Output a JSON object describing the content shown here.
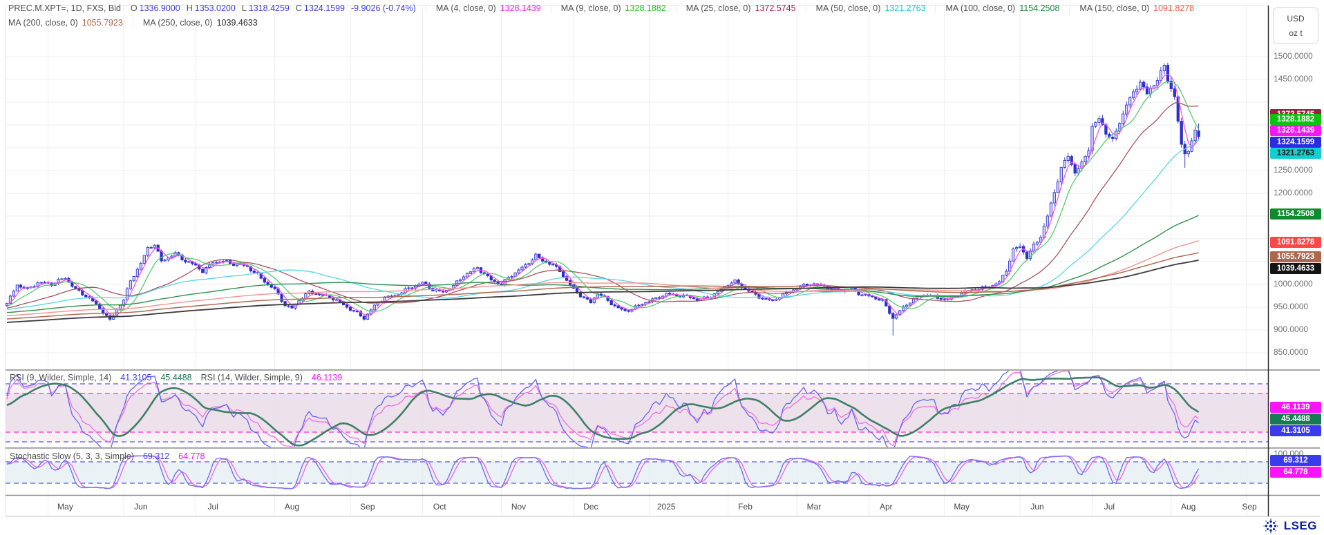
{
  "header": {
    "instrument": "PREC.M.XPT=, 1D, FXS, Bid",
    "ohlc": {
      "o_label": "O",
      "open": "1336.9000",
      "h_label": "H",
      "high": "1353.0200",
      "l_label": "L",
      "low": "1318.4259",
      "c_label": "C",
      "close": "1324.1599",
      "change": "-9.9026 (-0.74%)"
    },
    "ma_row1": [
      {
        "label": "MA (4, close, 0)",
        "value": "1328.1439",
        "color": "#ef1fe0"
      },
      {
        "label": "MA (9, close, 0)",
        "value": "1328.1882",
        "color": "#17c117"
      },
      {
        "label": "MA (25, close, 0)",
        "value": "1372.5745",
        "color": "#a8204a"
      },
      {
        "label": "MA (50, close, 0)",
        "value": "1321.2763",
        "color": "#17c3c3"
      },
      {
        "label": "MA (100, close, 0)",
        "value": "1154.2508",
        "color": "#138a38"
      },
      {
        "label": "MA (150, close, 0)",
        "value": "1091.8278",
        "color": "#f4564e"
      }
    ],
    "ma_row2": [
      {
        "label": "MA (200, close, 0)",
        "value": "1055.7923",
        "color": "#b2684c"
      },
      {
        "label": "MA (250, close, 0)",
        "value": "1039.4633",
        "color": "#2b2b2b"
      }
    ]
  },
  "axis": {
    "unit_top": "USD",
    "unit_bottom": "oz t",
    "price_ticks": [
      {
        "label": "1500.0000",
        "value": 1500
      },
      {
        "label": "1450.0000",
        "value": 1450
      },
      {
        "label": "1250.0000",
        "value": 1250
      },
      {
        "label": "1200.0000",
        "value": 1200
      },
      {
        "label": "1000.0000",
        "value": 1000
      },
      {
        "label": "950.0000",
        "value": 950
      },
      {
        "label": "900.0000",
        "value": 900
      },
      {
        "label": "850.0000",
        "value": 850
      }
    ],
    "stoch_tick": "100.000",
    "x_labels": [
      "May",
      "Jun",
      "Jul",
      "Aug",
      "Sep",
      "Oct",
      "Nov",
      "Dec",
      "2025",
      "Feb",
      "Mar",
      "Apr",
      "May",
      "Jun",
      "Jul",
      "Aug",
      "Sep"
    ]
  },
  "badges": {
    "price": [
      {
        "label": "1372.5745",
        "value": 1372.5745,
        "bg": "#a01f3e",
        "fg": "#ffffff"
      },
      {
        "label": "1328.1882",
        "value": 1328.1882,
        "bg": "#0ec20e",
        "fg": "#ffffff"
      },
      {
        "label": "1328.1439",
        "value": 1328.1439,
        "bg": "#f515f5",
        "fg": "#ffffff"
      },
      {
        "label": "1324.1599",
        "value": 1324.1599,
        "bg": "#2b2be0",
        "fg": "#ffffff"
      },
      {
        "label": "1321.2763",
        "value": 1321.2763,
        "bg": "#12cfcf",
        "fg": "#101010"
      },
      {
        "label": "1154.2508",
        "value": 1154.2508,
        "bg": "#0f8a2e",
        "fg": "#ffffff"
      },
      {
        "label": "1091.8278",
        "value": 1091.8278,
        "bg": "#fb4747",
        "fg": "#ffffff"
      },
      {
        "label": "1055.7923",
        "value": 1055.7923,
        "bg": "#ab684f",
        "fg": "#ffffff"
      },
      {
        "label": "1039.4633",
        "value": 1039.4633,
        "bg": "#141414",
        "fg": "#ffffff"
      }
    ],
    "rsi": [
      {
        "label": "46.1139",
        "value": 46.1139,
        "bg": "#f515f5",
        "fg": "#ffffff"
      },
      {
        "label": "45.4488",
        "value": 45.4488,
        "bg": "#187a54",
        "fg": "#ffffff"
      },
      {
        "label": "41.3105",
        "value": 41.3105,
        "bg": "#3b3bee",
        "fg": "#ffffff"
      }
    ],
    "stoch": [
      {
        "label": "69.312",
        "value": 69.312,
        "bg": "#3b3bee",
        "fg": "#ffffff"
      },
      {
        "label": "64.778",
        "value": 64.778,
        "bg": "#f515f5",
        "fg": "#ffffff"
      }
    ]
  },
  "rsi_legend": [
    {
      "text": "RSI (9, Wilder, Simple, 14)",
      "color": "#4e4e4e"
    },
    {
      "text": "41.3105",
      "color": "#3b3bee"
    },
    {
      "text": "45.4488",
      "color": "#187a54"
    },
    {
      "text": "RSI (14, Wilder, Simple, 9)",
      "color": "#4e4e4e"
    },
    {
      "text": "46.1139",
      "color": "#f515f5"
    }
  ],
  "stoch_legend": [
    {
      "text": "Stochastic Slow (5, 3, 3, Simple)",
      "color": "#4e4e4e"
    },
    {
      "text": "69.312",
      "color": "#3b3bee"
    },
    {
      "text": "64.778",
      "color": "#f515f5"
    }
  ],
  "footer": {
    "brand": "LSEG"
  },
  "chart_data": {
    "type": "candlestick",
    "instrument": "PREC.M.XPT=",
    "interval": "1D",
    "source": "FXS",
    "field": "Bid",
    "x_axis": {
      "labels": [
        "May",
        "Jun",
        "Jul",
        "Aug",
        "Sep",
        "Oct",
        "Nov",
        "Dec",
        "2025",
        "Feb",
        "Mar",
        "Apr",
        "May",
        "Jun",
        "Jul",
        "Aug",
        "Sep"
      ],
      "month_start_days": [
        12,
        34,
        55,
        78,
        100,
        121,
        144,
        165,
        187,
        210,
        230,
        251,
        273,
        295,
        316,
        339,
        361
      ]
    },
    "price_pane": {
      "unit": "USD / oz t",
      "visible_range": [
        850,
        1500
      ],
      "grid_step": 50,
      "prehistory": [
        [
          -250,
          878
        ],
        [
          -200,
          895
        ],
        [
          -150,
          910
        ],
        [
          -100,
          925
        ],
        [
          -50,
          938
        ],
        [
          -10,
          948
        ]
      ],
      "anchors": [
        [
          0,
          955
        ],
        [
          3,
          1000
        ],
        [
          6,
          992
        ],
        [
          9,
          1004
        ],
        [
          13,
          998
        ],
        [
          17,
          1016
        ],
        [
          20,
          992
        ],
        [
          24,
          968
        ],
        [
          28,
          938
        ],
        [
          30,
          922
        ],
        [
          32,
          948
        ],
        [
          34,
          968
        ],
        [
          36,
          1008
        ],
        [
          39,
          1042
        ],
        [
          41,
          1078
        ],
        [
          43,
          1088
        ],
        [
          45,
          1054
        ],
        [
          47,
          1062
        ],
        [
          49,
          1068
        ],
        [
          52,
          1048
        ],
        [
          55,
          1040
        ],
        [
          57,
          1030
        ],
        [
          60,
          1052
        ],
        [
          63,
          1050
        ],
        [
          66,
          1042
        ],
        [
          70,
          1040
        ],
        [
          73,
          1024
        ],
        [
          76,
          1000
        ],
        [
          78,
          986
        ],
        [
          81,
          952
        ],
        [
          83,
          948
        ],
        [
          85,
          968
        ],
        [
          88,
          985
        ],
        [
          91,
          976
        ],
        [
          94,
          970
        ],
        [
          97,
          962
        ],
        [
          100,
          948
        ],
        [
          102,
          938
        ],
        [
          104,
          924
        ],
        [
          107,
          950
        ],
        [
          110,
          972
        ],
        [
          113,
          978
        ],
        [
          116,
          988
        ],
        [
          119,
          994
        ],
        [
          121,
          1002
        ],
        [
          124,
          990
        ],
        [
          127,
          986
        ],
        [
          130,
          996
        ],
        [
          133,
          1016
        ],
        [
          135,
          1026
        ],
        [
          137,
          1038
        ],
        [
          139,
          1026
        ],
        [
          141,
          1012
        ],
        [
          144,
          998
        ],
        [
          146,
          1012
        ],
        [
          148,
          1024
        ],
        [
          151,
          1044
        ],
        [
          154,
          1066
        ],
        [
          156,
          1052
        ],
        [
          158,
          1044
        ],
        [
          161,
          1028
        ],
        [
          163,
          1008
        ],
        [
          165,
          992
        ],
        [
          168,
          972
        ],
        [
          170,
          960
        ],
        [
          172,
          978
        ],
        [
          174,
          968
        ],
        [
          176,
          958
        ],
        [
          178,
          950
        ],
        [
          180,
          944
        ],
        [
          183,
          950
        ],
        [
          186,
          958
        ],
        [
          189,
          968
        ],
        [
          192,
          982
        ],
        [
          195,
          978
        ],
        [
          198,
          972
        ],
        [
          201,
          964
        ],
        [
          204,
          972
        ],
        [
          207,
          986
        ],
        [
          210,
          1000
        ],
        [
          212,
          1004
        ],
        [
          214,
          992
        ],
        [
          217,
          982
        ],
        [
          220,
          972
        ],
        [
          223,
          964
        ],
        [
          226,
          974
        ],
        [
          229,
          988
        ],
        [
          232,
          1000
        ],
        [
          234,
          1004
        ],
        [
          237,
          997
        ],
        [
          240,
          988
        ],
        [
          243,
          986
        ],
        [
          246,
          992
        ],
        [
          249,
          978
        ],
        [
          252,
          970
        ],
        [
          255,
          962
        ],
        [
          258,
          928
        ],
        [
          260,
          944
        ],
        [
          262,
          958
        ],
        [
          265,
          970
        ],
        [
          268,
          976
        ],
        [
          271,
          972
        ],
        [
          274,
          970
        ],
        [
          277,
          976
        ],
        [
          280,
          984
        ],
        [
          283,
          990
        ],
        [
          286,
          998
        ],
        [
          289,
          1006
        ],
        [
          291,
          1030
        ],
        [
          293,
          1072
        ],
        [
          295,
          1082
        ],
        [
          297,
          1060
        ],
        [
          299,
          1088
        ],
        [
          301,
          1108
        ],
        [
          303,
          1150
        ],
        [
          305,
          1200
        ],
        [
          307,
          1252
        ],
        [
          309,
          1280
        ],
        [
          311,
          1248
        ],
        [
          313,
          1268
        ],
        [
          315,
          1300
        ],
        [
          316,
          1348
        ],
        [
          318,
          1360
        ],
        [
          320,
          1330
        ],
        [
          322,
          1314
        ],
        [
          324,
          1356
        ],
        [
          326,
          1400
        ],
        [
          328,
          1422
        ],
        [
          330,
          1446
        ],
        [
          332,
          1414
        ],
        [
          334,
          1434
        ],
        [
          336,
          1465
        ],
        [
          337,
          1478
        ],
        [
          338,
          1450
        ],
        [
          340,
          1418
        ],
        [
          342,
          1305
        ],
        [
          343,
          1288
        ],
        [
          344,
          1295
        ],
        [
          345,
          1312
        ],
        [
          346,
          1334
        ],
        [
          347,
          1324.1599
        ]
      ],
      "spike_lows": [
        [
          258,
          888
        ],
        [
          343,
          1256
        ]
      ],
      "last": {
        "open": 1336.9,
        "high": 1353.02,
        "low": 1318.4259,
        "close": 1324.1599
      },
      "moving_averages": [
        {
          "period": 4,
          "current": 1328.1439,
          "color": "#f353ea",
          "width": 1.3
        },
        {
          "period": 9,
          "current": 1328.1882,
          "color": "#55ce6b",
          "width": 1.3
        },
        {
          "period": 25,
          "current": 1372.5745,
          "color": "#a85064",
          "width": 1.3
        },
        {
          "period": 50,
          "current": 1321.2763,
          "color": "#58d5e6",
          "width": 1.3
        },
        {
          "period": 100,
          "current": 1154.2508,
          "color": "#2f9150",
          "width": 1.4
        },
        {
          "period": 150,
          "current": 1091.8278,
          "color": "#f29390",
          "width": 1.4
        },
        {
          "period": 200,
          "current": 1055.7923,
          "color": "#b06b4f",
          "width": 1.5
        },
        {
          "period": 250,
          "current": 1039.4633,
          "color": "#3a3a3a",
          "width": 1.8
        }
      ]
    },
    "rsi_pane": {
      "studies": [
        {
          "name": "RSI (9, Wilder, Simple, 14)",
          "rsi_current": 41.3105,
          "avg_current": 45.4488
        },
        {
          "name": "RSI (14, Wilder, Simple, 9)",
          "rsi_current": 46.1139
        }
      ],
      "levels": [
        80,
        70,
        30,
        20
      ],
      "colors": {
        "rsi9": "#6464f0",
        "rsi9_avg": "#3d7f67",
        "rsi14": "#ef6fe0"
      }
    },
    "stoch_pane": {
      "name": "Stochastic Slow (5, 3, 3, Simple)",
      "k_current": 69.312,
      "d_current": 64.778,
      "levels": [
        80,
        20
      ],
      "colors": {
        "k": "#7070f2",
        "d": "#f06ae0"
      }
    }
  }
}
